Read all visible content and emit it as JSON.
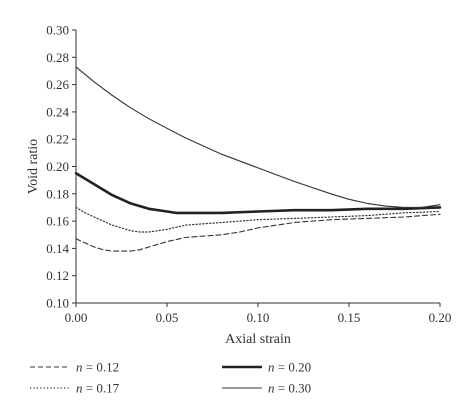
{
  "chart_data": {
    "type": "line",
    "xlabel": "Axial strain",
    "ylabel": "Void ratio",
    "xlim": [
      0.0,
      0.2
    ],
    "ylim": [
      0.1,
      0.3
    ],
    "x_ticks": [
      "0.00",
      "0.05",
      "0.10",
      "0.15",
      "0.20"
    ],
    "y_ticks": [
      "0.10",
      "0.12",
      "0.14",
      "0.16",
      "0.18",
      "0.20",
      "0.22",
      "0.24",
      "0.26",
      "0.28",
      "0.30"
    ],
    "series": [
      {
        "name": "n = 0.12",
        "var": "n",
        "value_text": " = 0.12",
        "style": "dashed",
        "color": "#333333",
        "x": [
          0.0,
          0.005,
          0.01,
          0.015,
          0.02,
          0.025,
          0.03,
          0.035,
          0.04,
          0.05,
          0.06,
          0.07,
          0.08,
          0.09,
          0.1,
          0.11,
          0.12,
          0.14,
          0.16,
          0.18,
          0.2
        ],
        "y": [
          0.147,
          0.144,
          0.141,
          0.139,
          0.138,
          0.138,
          0.138,
          0.139,
          0.141,
          0.145,
          0.148,
          0.149,
          0.15,
          0.152,
          0.155,
          0.157,
          0.159,
          0.161,
          0.162,
          0.163,
          0.165
        ]
      },
      {
        "name": "n = 0.17",
        "var": "n",
        "value_text": " = 0.17",
        "style": "dotted",
        "color": "#333333",
        "x": [
          0.0,
          0.005,
          0.01,
          0.015,
          0.02,
          0.03,
          0.035,
          0.04,
          0.045,
          0.05,
          0.06,
          0.07,
          0.08,
          0.09,
          0.1,
          0.12,
          0.14,
          0.16,
          0.18,
          0.2
        ],
        "y": [
          0.17,
          0.166,
          0.163,
          0.16,
          0.157,
          0.153,
          0.152,
          0.152,
          0.153,
          0.154,
          0.157,
          0.158,
          0.159,
          0.16,
          0.161,
          0.162,
          0.163,
          0.164,
          0.166,
          0.167
        ]
      },
      {
        "name": "n = 0.20",
        "var": "n",
        "value_text": " = 0.20",
        "style": "thick",
        "color": "#222222",
        "x": [
          0.0,
          0.01,
          0.02,
          0.03,
          0.04,
          0.05,
          0.055,
          0.06,
          0.07,
          0.08,
          0.1,
          0.12,
          0.14,
          0.16,
          0.18,
          0.2
        ],
        "y": [
          0.195,
          0.187,
          0.179,
          0.173,
          0.169,
          0.167,
          0.166,
          0.166,
          0.166,
          0.166,
          0.167,
          0.168,
          0.168,
          0.169,
          0.169,
          0.17
        ]
      },
      {
        "name": "n = 0.30",
        "var": "n",
        "value_text": " = 0.30",
        "style": "solid",
        "color": "#333333",
        "x": [
          0.0,
          0.01,
          0.02,
          0.03,
          0.04,
          0.05,
          0.06,
          0.08,
          0.1,
          0.12,
          0.14,
          0.15,
          0.16,
          0.17,
          0.18,
          0.19,
          0.2
        ],
        "y": [
          0.273,
          0.262,
          0.252,
          0.243,
          0.235,
          0.228,
          0.221,
          0.209,
          0.199,
          0.189,
          0.18,
          0.176,
          0.173,
          0.171,
          0.17,
          0.17,
          0.172
        ]
      }
    ],
    "legend_placement": "bottom"
  }
}
